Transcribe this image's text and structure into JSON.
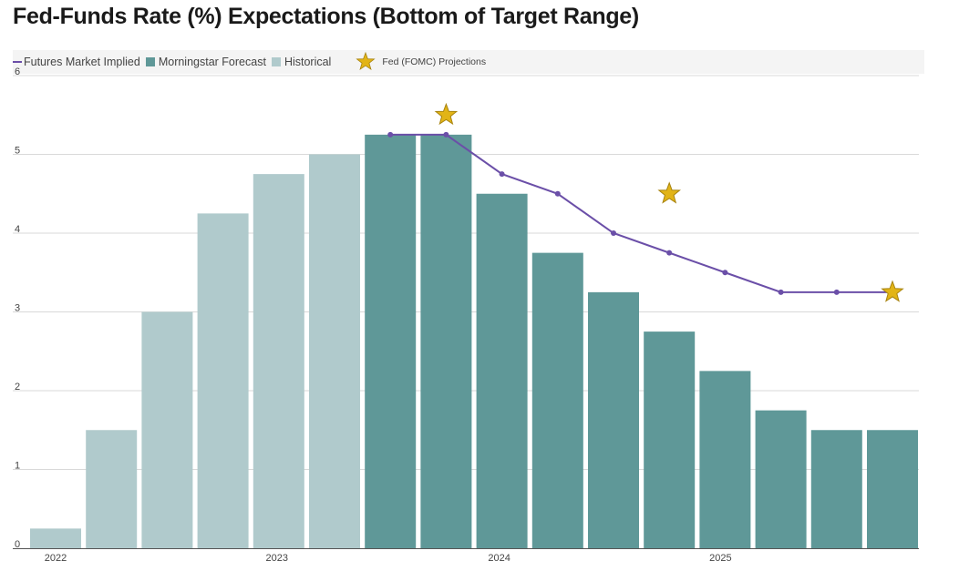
{
  "title": "Fed-Funds Rate (%) Expectations (Bottom of Target Range)",
  "legend": {
    "futures": "Futures Market Implied",
    "forecast": "Morningstar Forecast",
    "historical": "Historical",
    "fomc": "Fed (FOMC) Projections"
  },
  "colors": {
    "historical": "#b0cacc",
    "forecast": "#5f9898",
    "futures": "#6b4fa8",
    "fomc_star": "#e2b416",
    "grid": "#d9d9d9"
  },
  "chart_data": {
    "type": "bar",
    "title": "Fed-Funds Rate (%) Expectations (Bottom of Target Range)",
    "ylim": [
      0,
      6
    ],
    "y_ticks": [
      "0",
      "1",
      "2",
      "3",
      "4",
      "5",
      "6"
    ],
    "x_labels": [
      "2022",
      "2023",
      "2024",
      "2025"
    ],
    "grid": true,
    "legend_position": "top-left",
    "bars": [
      {
        "series": "Historical",
        "value": 0.25
      },
      {
        "series": "Historical",
        "value": 1.5
      },
      {
        "series": "Historical",
        "value": 3.0
      },
      {
        "series": "Historical",
        "value": 4.25
      },
      {
        "series": "Historical",
        "value": 4.75
      },
      {
        "series": "Historical",
        "value": 5.0
      },
      {
        "series": "Morningstar Forecast",
        "value": 5.25
      },
      {
        "series": "Morningstar Forecast",
        "value": 5.25
      },
      {
        "series": "Morningstar Forecast",
        "value": 4.5
      },
      {
        "series": "Morningstar Forecast",
        "value": 3.75
      },
      {
        "series": "Morningstar Forecast",
        "value": 3.25
      },
      {
        "series": "Morningstar Forecast",
        "value": 2.75
      },
      {
        "series": "Morningstar Forecast",
        "value": 2.25
      },
      {
        "series": "Morningstar Forecast",
        "value": 1.75
      },
      {
        "series": "Morningstar Forecast",
        "value": 1.5
      },
      {
        "series": "Morningstar Forecast",
        "value": 1.5
      }
    ],
    "futures_market_implied": [
      {
        "bar": 6,
        "value": 5.25
      },
      {
        "bar": 7,
        "value": 5.25
      },
      {
        "bar": 8,
        "value": 4.75
      },
      {
        "bar": 9,
        "value": 4.5
      },
      {
        "bar": 10,
        "value": 4.0
      },
      {
        "bar": 11,
        "value": 3.75
      },
      {
        "bar": 12,
        "value": 3.5
      },
      {
        "bar": 13,
        "value": 3.25
      },
      {
        "bar": 14,
        "value": 3.25
      },
      {
        "bar": 15,
        "value": 3.25
      }
    ],
    "fomc_projections": [
      {
        "bar": 7,
        "value": 5.5
      },
      {
        "bar": 11,
        "value": 4.5
      },
      {
        "bar": 15,
        "value": 3.25
      }
    ]
  }
}
